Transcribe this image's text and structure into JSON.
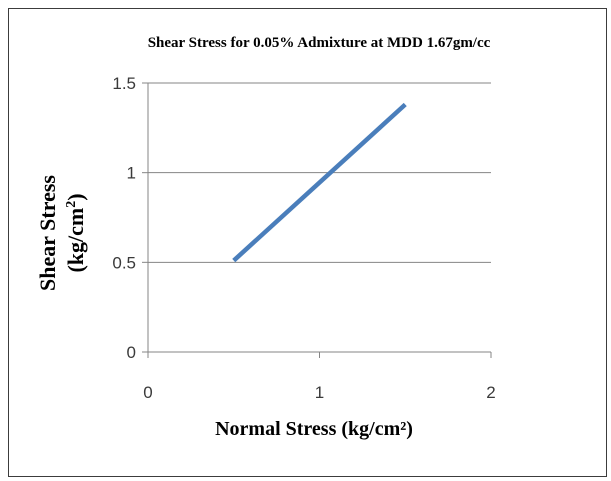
{
  "chart_data": {
    "type": "line",
    "title": "Shear Stress for 0.05% Admixture at MDD 1.67gm/cc",
    "xlabel": "Normal Stress (kg/cm²)",
    "ylabel": {
      "line1": "Shear Stress",
      "line2_prefix": "(kg/cm",
      "line2_sup": "2",
      "line2_suffix": ")"
    },
    "xlim": [
      0,
      2
    ],
    "ylim": [
      0,
      1.5
    ],
    "x_ticks": [
      "0",
      "1",
      "2"
    ],
    "y_ticks": [
      "0",
      "0.5",
      "1",
      "1.5"
    ],
    "grid": "horizontal",
    "series": [
      {
        "x": [
          0.5,
          1.5
        ],
        "y": [
          0.51,
          1.38
        ],
        "color": "#4a7ebb"
      }
    ]
  }
}
